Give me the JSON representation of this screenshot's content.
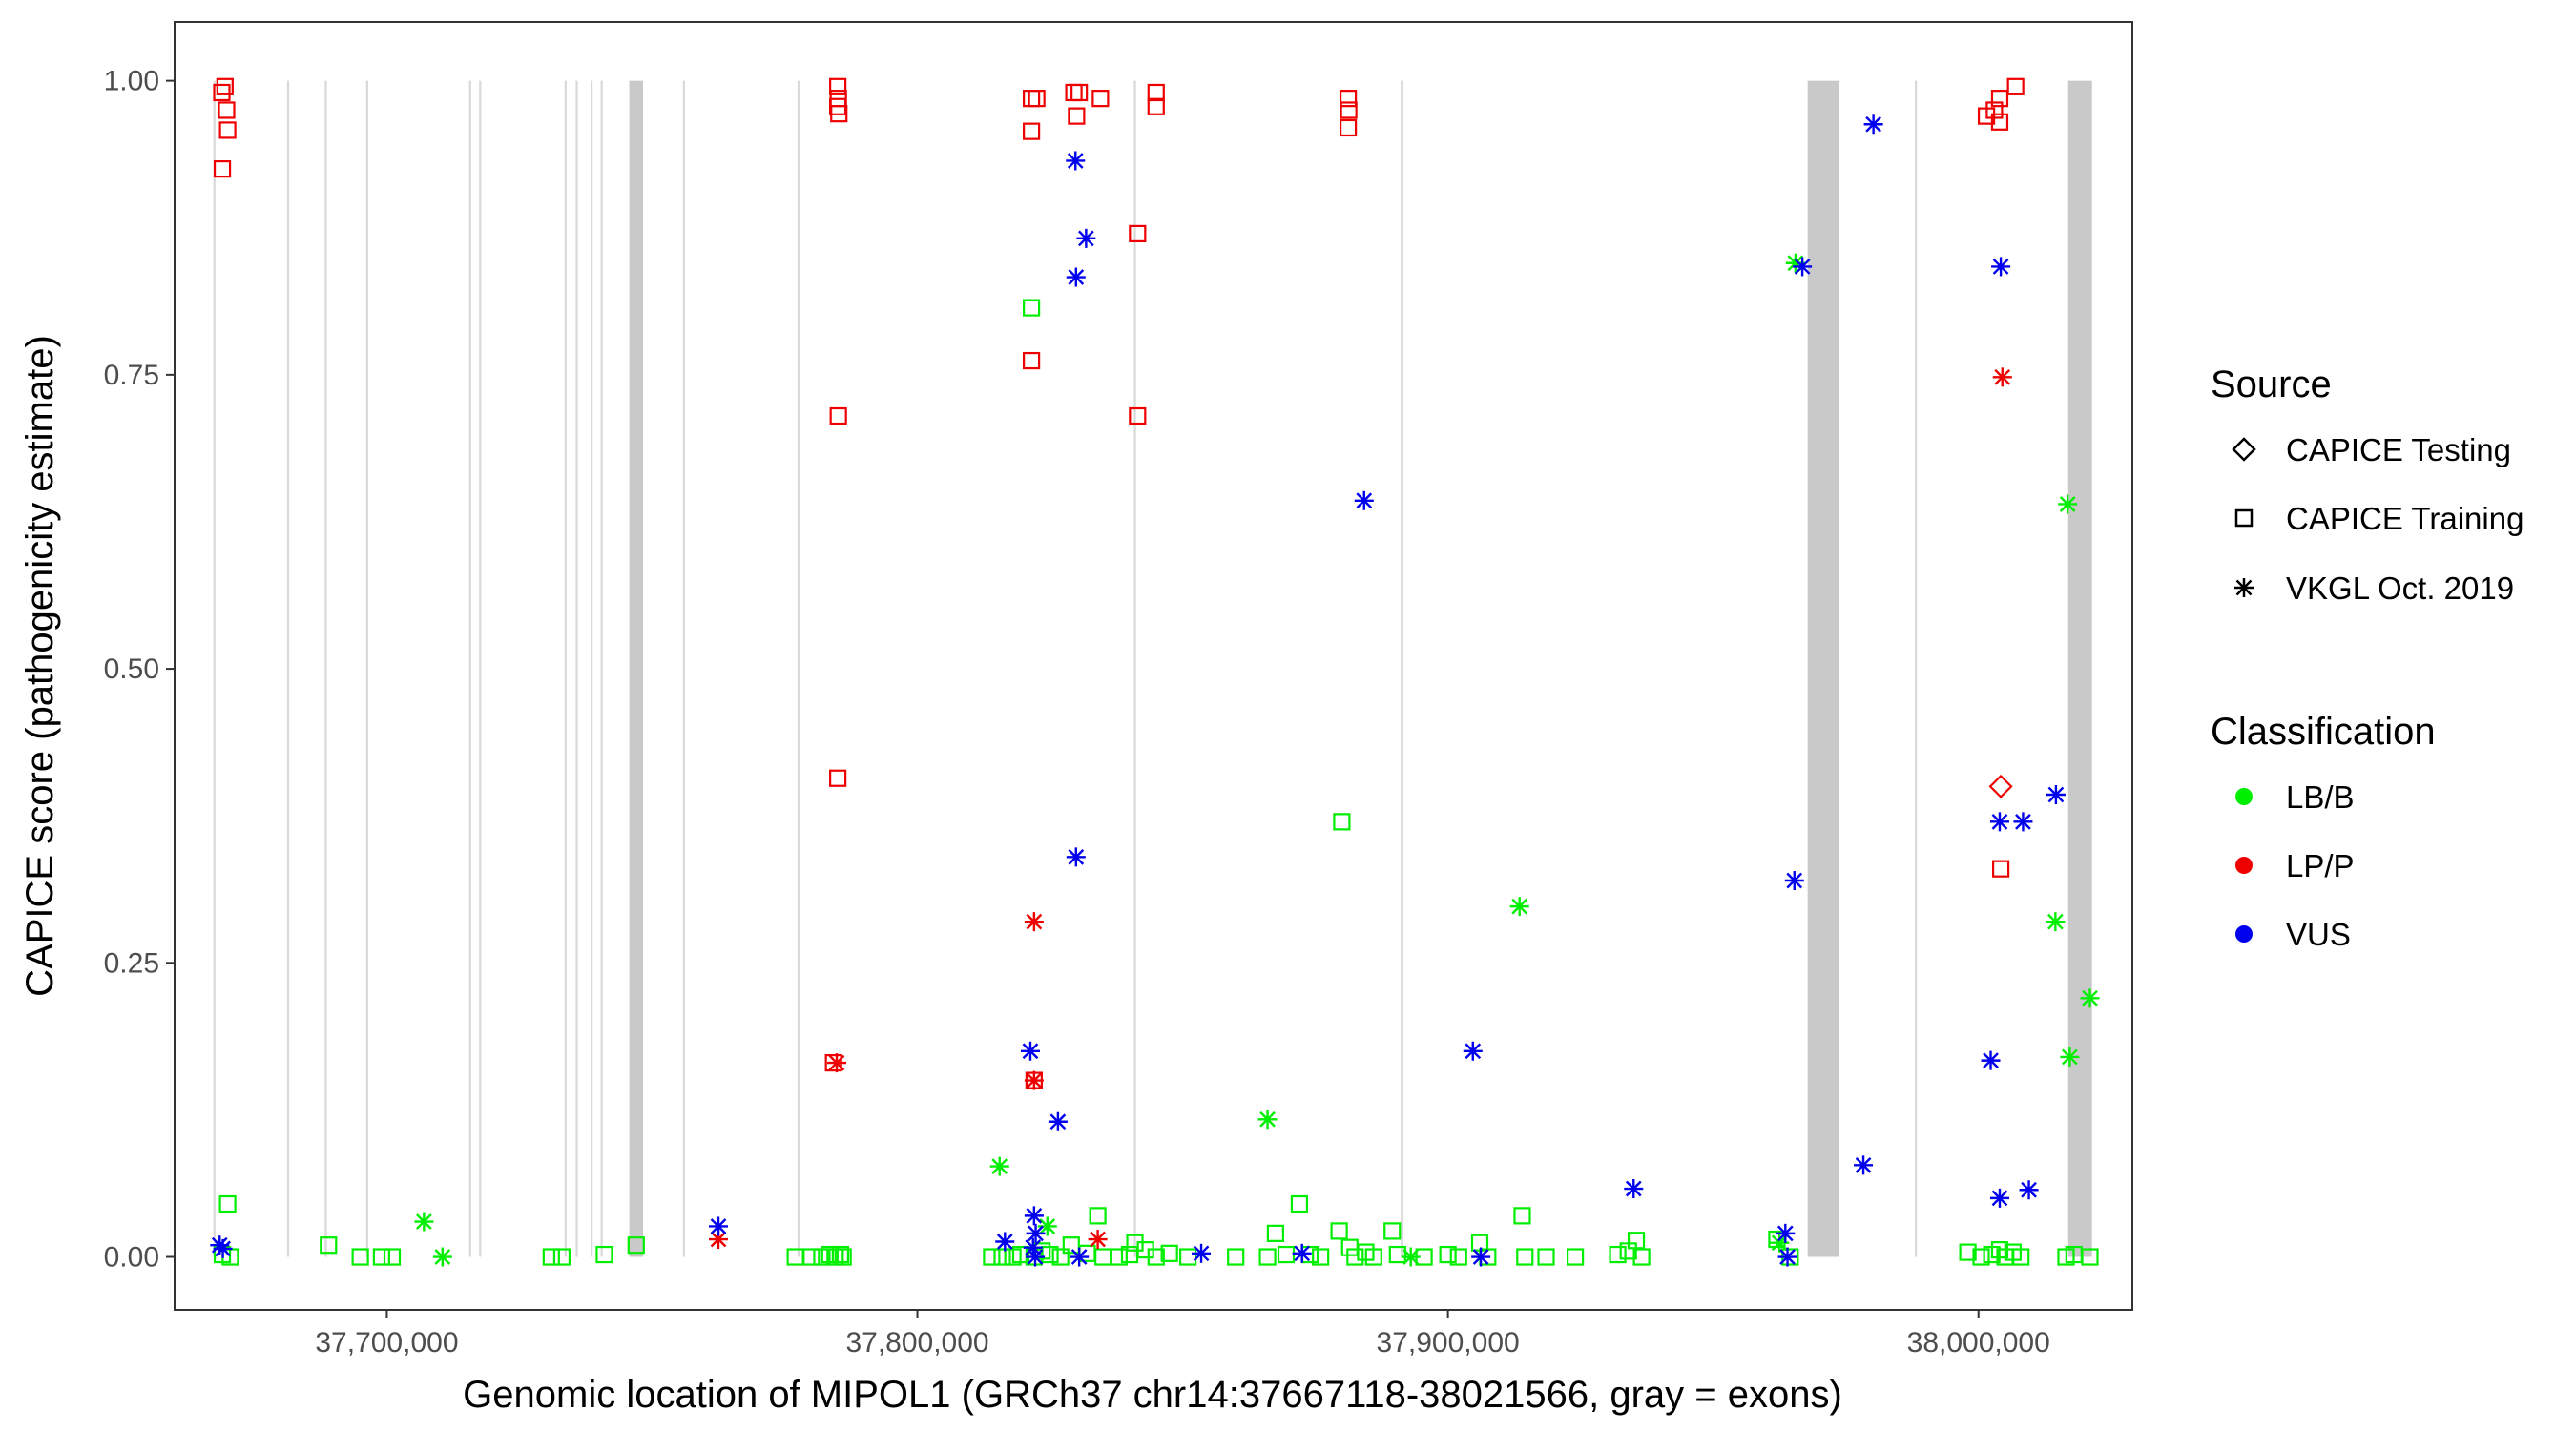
{
  "chart_data": {
    "type": "scatter",
    "title": "",
    "xlabel": "Genomic location of MIPOL1 (GRCh37 chr14:37667118-38021566, gray = exons)",
    "ylabel": "CAPICE score (pathogenicity estimate)",
    "xlim": [
      37660000,
      38029000
    ],
    "ylim": [
      -0.045,
      1.05
    ],
    "x_ticks": [
      37700000,
      37800000,
      37900000,
      38000000
    ],
    "x_tick_labels": [
      "37,700,000",
      "37,800,000",
      "37,900,000",
      "38,000,000"
    ],
    "y_ticks": [
      0,
      0.25,
      0.5,
      0.75,
      1.0
    ],
    "y_tick_labels": [
      "0.00",
      "0.25",
      "0.50",
      "0.75",
      "1.00"
    ],
    "grid": false,
    "legend_position": "right",
    "exons": [
      [
        37667300,
        37667700
      ],
      [
        37681200,
        37681600
      ],
      [
        37688300,
        37688700
      ],
      [
        37696100,
        37696500
      ],
      [
        37715500,
        37715900
      ],
      [
        37717400,
        37717800
      ],
      [
        37733500,
        37733900
      ],
      [
        37735600,
        37736000
      ],
      [
        37738400,
        37738800
      ],
      [
        37740300,
        37740700
      ],
      [
        37745700,
        37748300
      ],
      [
        37755800,
        37756200
      ],
      [
        37777400,
        37777800
      ],
      [
        37840800,
        37841200
      ],
      [
        37891100,
        37891600
      ],
      [
        37967800,
        37973800
      ],
      [
        37988000,
        37988400
      ],
      [
        38016900,
        38021400
      ]
    ],
    "legends": {
      "source": {
        "title": "Source",
        "items": [
          {
            "label": "CAPICE Testing",
            "shape": "diamond"
          },
          {
            "label": "CAPICE Training",
            "shape": "square"
          },
          {
            "label": "VKGL Oct. 2019",
            "shape": "asterisk"
          }
        ]
      },
      "classification": {
        "title": "Classification",
        "items": [
          {
            "label": "LB/B",
            "color": "#00ee00"
          },
          {
            "label": "LP/P",
            "color": "#ee0000"
          },
          {
            "label": "VUS",
            "color": "#0000ee"
          }
        ]
      }
    },
    "series": [
      {
        "source": "CAPICE Training",
        "classification": "LP/P",
        "points": [
          [
            37668900,
            0.99
          ],
          [
            37669500,
            0.995
          ],
          [
            37669800,
            0.975
          ],
          [
            37670000,
            0.958
          ],
          [
            37669000,
            0.925
          ],
          [
            37785000,
            0.995
          ],
          [
            37785100,
            0.985
          ],
          [
            37785000,
            0.978
          ],
          [
            37785200,
            0.972
          ],
          [
            37785100,
            0.715
          ],
          [
            37785000,
            0.407
          ],
          [
            37784200,
            0.165
          ],
          [
            37821500,
            0.985
          ],
          [
            37822500,
            0.985
          ],
          [
            37821500,
            0.957
          ],
          [
            37821500,
            0.762
          ],
          [
            37822000,
            0.15
          ],
          [
            37829500,
            0.99
          ],
          [
            37830500,
            0.99
          ],
          [
            37830000,
            0.97
          ],
          [
            37834500,
            0.985
          ],
          [
            37841500,
            0.87
          ],
          [
            37841500,
            0.715
          ],
          [
            37845000,
            0.99
          ],
          [
            37845000,
            0.978
          ],
          [
            37881200,
            0.985
          ],
          [
            37881300,
            0.975
          ],
          [
            37881200,
            0.96
          ],
          [
            38007000,
            0.995
          ],
          [
            38004000,
            0.985
          ],
          [
            38003000,
            0.975
          ],
          [
            38001500,
            0.97
          ],
          [
            38004000,
            0.965
          ],
          [
            38004200,
            0.33
          ]
        ]
      },
      {
        "source": "CAPICE Testing",
        "classification": "LP/P",
        "points": [
          [
            38004200,
            0.4
          ]
        ]
      },
      {
        "source": "CAPICE Training",
        "classification": "LB/B",
        "points": [
          [
            37670000,
            0.045
          ],
          [
            37669000,
            0.002
          ],
          [
            37670500,
            0.0
          ],
          [
            37689000,
            0.01
          ],
          [
            37695000,
            0.0
          ],
          [
            37699000,
            0.0
          ],
          [
            37701000,
            0.0
          ],
          [
            37731000,
            0.0
          ],
          [
            37733000,
            0.0
          ],
          [
            37741000,
            0.002
          ],
          [
            37747000,
            0.01
          ],
          [
            37777000,
            0.0
          ],
          [
            37780000,
            0.0
          ],
          [
            37782000,
            0.0
          ],
          [
            37783500,
            0.002
          ],
          [
            37784500,
            0.0
          ],
          [
            37785500,
            0.002
          ],
          [
            37786000,
            0.0
          ],
          [
            37814000,
            0.0
          ],
          [
            37816000,
            0.0
          ],
          [
            37818000,
            0.0
          ],
          [
            37819500,
            0.002
          ],
          [
            37821500,
            0.807
          ],
          [
            37822000,
            0.0
          ],
          [
            37823500,
            0.005
          ],
          [
            37825000,
            0.002
          ],
          [
            37827000,
            0.0
          ],
          [
            37829000,
            0.01
          ],
          [
            37832000,
            0.003
          ],
          [
            37834000,
            0.035
          ],
          [
            37835000,
            0.0
          ],
          [
            37838000,
            0.0
          ],
          [
            37840000,
            0.002
          ],
          [
            37841000,
            0.012
          ],
          [
            37843000,
            0.006
          ],
          [
            37845000,
            0.0
          ],
          [
            37847500,
            0.003
          ],
          [
            37851000,
            0.0
          ],
          [
            37860000,
            0.0
          ],
          [
            37866000,
            0.0
          ],
          [
            37867500,
            0.02
          ],
          [
            37869500,
            0.002
          ],
          [
            37872000,
            0.045
          ],
          [
            37874000,
            0.002
          ],
          [
            37876000,
            0.0
          ],
          [
            37879500,
            0.022
          ],
          [
            37880000,
            0.37
          ],
          [
            37881500,
            0.008
          ],
          [
            37882500,
            0.0
          ],
          [
            37884500,
            0.004
          ],
          [
            37886000,
            0.0
          ],
          [
            37889500,
            0.022
          ],
          [
            37890500,
            0.002
          ],
          [
            37895500,
            0.0
          ],
          [
            37900000,
            0.002
          ],
          [
            37902000,
            0.0
          ],
          [
            37906000,
            0.012
          ],
          [
            37907500,
            0.0
          ],
          [
            37914000,
            0.035
          ],
          [
            37914500,
            0.0
          ],
          [
            37918500,
            0.0
          ],
          [
            37924000,
            0.0
          ],
          [
            37932000,
            0.002
          ],
          [
            37934000,
            0.005
          ],
          [
            37935500,
            0.014
          ],
          [
            37936500,
            0.0
          ],
          [
            37962000,
            0.015
          ],
          [
            37964500,
            0.0
          ],
          [
            37998000,
            0.004
          ],
          [
            38000500,
            0.0
          ],
          [
            38002500,
            0.002
          ],
          [
            38004000,
            0.006
          ],
          [
            38005000,
            0.0
          ],
          [
            38006500,
            0.004
          ],
          [
            38008000,
            0.0
          ],
          [
            38016500,
            0.0
          ],
          [
            38018000,
            0.002
          ],
          [
            38021000,
            0.0
          ]
        ]
      },
      {
        "source": "VKGL Oct. 2019",
        "classification": "LB/B",
        "points": [
          [
            37707000,
            0.03
          ],
          [
            37710500,
            0.0
          ],
          [
            37815500,
            0.077
          ],
          [
            37824500,
            0.026
          ],
          [
            37866000,
            0.117
          ],
          [
            37913500,
            0.298
          ],
          [
            37965500,
            0.845
          ],
          [
            38014500,
            0.285
          ],
          [
            38016800,
            0.64
          ],
          [
            38017200,
            0.17
          ],
          [
            38021000,
            0.22
          ],
          [
            37893000,
            0.0
          ],
          [
            37962500,
            0.012
          ]
        ]
      },
      {
        "source": "VKGL Oct. 2019",
        "classification": "LP/P",
        "points": [
          [
            37762500,
            0.015
          ],
          [
            37784800,
            0.165
          ],
          [
            37822000,
            0.285
          ],
          [
            37822000,
            0.15
          ],
          [
            37834000,
            0.015
          ],
          [
            38004500,
            0.748
          ]
        ]
      },
      {
        "source": "VKGL Oct. 2019",
        "classification": "VUS",
        "points": [
          [
            37668500,
            0.01
          ],
          [
            37669100,
            0.007
          ],
          [
            37762500,
            0.026
          ],
          [
            37816500,
            0.013
          ],
          [
            37821300,
            0.175
          ],
          [
            37822000,
            0.035
          ],
          [
            37822300,
            0.02
          ],
          [
            37821800,
            0.008
          ],
          [
            37822200,
            0.0
          ],
          [
            37826500,
            0.115
          ],
          [
            37829800,
            0.932
          ],
          [
            37829900,
            0.833
          ],
          [
            37831800,
            0.866
          ],
          [
            37829900,
            0.34
          ],
          [
            37830500,
            0.0
          ],
          [
            37853500,
            0.003
          ],
          [
            37872500,
            0.003
          ],
          [
            37884200,
            0.643
          ],
          [
            37904700,
            0.175
          ],
          [
            37906200,
            0.0
          ],
          [
            37935000,
            0.058
          ],
          [
            37963600,
            0.02
          ],
          [
            37964000,
            0.0
          ],
          [
            37965300,
            0.32
          ],
          [
            37966800,
            0.842
          ],
          [
            37978300,
            0.078
          ],
          [
            37980200,
            0.963
          ],
          [
            38002300,
            0.167
          ],
          [
            38004200,
            0.842
          ],
          [
            38004000,
            0.37
          ],
          [
            38008400,
            0.37
          ],
          [
            38004000,
            0.05
          ],
          [
            38009500,
            0.057
          ],
          [
            38014600,
            0.393
          ]
        ]
      }
    ]
  }
}
